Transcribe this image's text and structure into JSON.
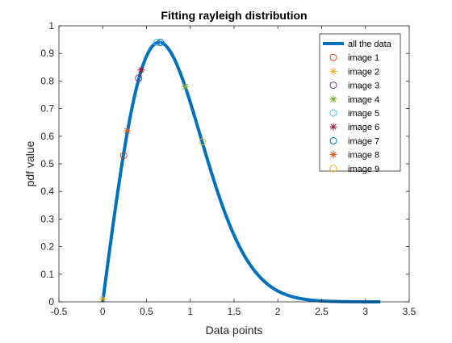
{
  "chart_data": {
    "type": "line",
    "title": "Fitting rayleigh distribution",
    "xlabel": "Data points",
    "ylabel": "pdf value",
    "xlim": [
      -0.5,
      3.5
    ],
    "ylim": [
      0,
      1
    ],
    "x_ticks": [
      "-0.5",
      "0",
      "0.5",
      "1",
      "1.5",
      "2",
      "2.5",
      "3",
      "3.5"
    ],
    "y_ticks": [
      "0",
      "0.1",
      "0.2",
      "0.3",
      "0.4",
      "0.5",
      "0.6",
      "0.7",
      "0.8",
      "0.9",
      "1"
    ],
    "grid": false,
    "legend_position": "top-right",
    "curve": {
      "name": "all the data",
      "distribution": "rayleigh",
      "sigma": 0.645,
      "x_range": [
        0,
        3.17
      ],
      "color": "#0072BD"
    },
    "series": [
      {
        "name": "all the data",
        "marker": "line",
        "color": "#0072BD"
      },
      {
        "name": "image 1",
        "marker": "o",
        "color": "#D95319",
        "points": [
          [
            0.24,
            0.53
          ]
        ]
      },
      {
        "name": "image 2",
        "marker": "*",
        "color": "#EDB120",
        "points": [
          [
            0.0,
            0.01
          ]
        ]
      },
      {
        "name": "image 3",
        "marker": "o",
        "color": "#7E2F8E",
        "points": [
          [
            0.41,
            0.81
          ]
        ]
      },
      {
        "name": "image 4",
        "marker": "*",
        "color": "#77AC30",
        "points": [
          [
            0.94,
            0.78
          ]
        ]
      },
      {
        "name": "image 5",
        "marker": "o",
        "color": "#4DBEEE",
        "points": [
          [
            0.62,
            0.94
          ]
        ]
      },
      {
        "name": "image 6",
        "marker": "*",
        "color": "#A2142F",
        "points": [
          [
            0.44,
            0.84
          ]
        ]
      },
      {
        "name": "image 7",
        "marker": "o",
        "color": "#0072BD",
        "points": [
          [
            0.66,
            0.94
          ]
        ]
      },
      {
        "name": "image 8",
        "marker": "*",
        "color": "#D95319",
        "points": [
          [
            0.28,
            0.62
          ]
        ]
      },
      {
        "name": "image 9",
        "marker": "o",
        "color": "#EDB120",
        "points": [
          [
            1.14,
            0.58
          ]
        ]
      }
    ]
  }
}
